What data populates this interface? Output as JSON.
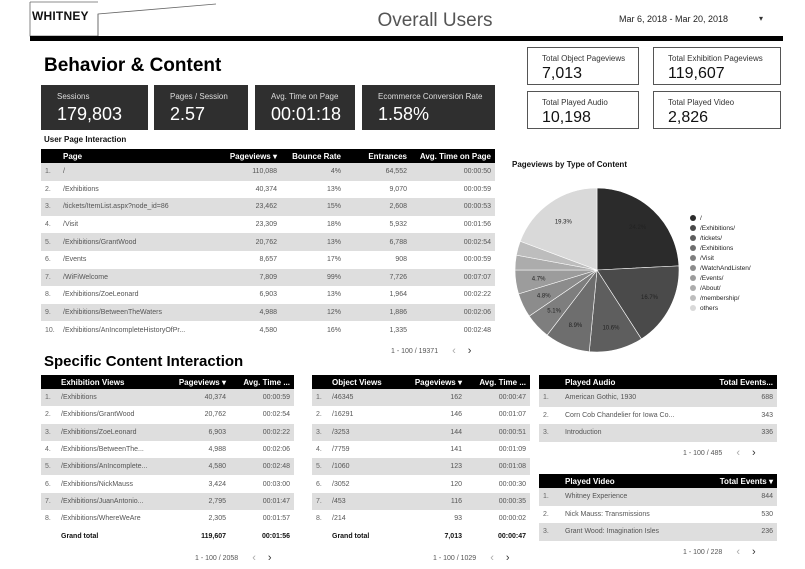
{
  "header": {
    "logo_text": "WHITNEY",
    "title": "Overall Users",
    "date_range": "Mar 6, 2018 - Mar 20, 2018",
    "dropdown_icon": "caret-down-icon"
  },
  "behavior": {
    "heading": "Behavior & Content",
    "kpis": [
      {
        "label": "Sessions",
        "value": "179,803"
      },
      {
        "label": "Pages / Session",
        "value": "2.57"
      },
      {
        "label": "Avg. Time on Page",
        "value": "00:01:18"
      },
      {
        "label": "Ecommerce Conversion Rate",
        "value": "1.58%"
      }
    ]
  },
  "totals": [
    {
      "label": "Total Object Pageviews",
      "value": "7,013"
    },
    {
      "label": "Total Exhibition Pageviews",
      "value": "119,607"
    },
    {
      "label": "Total Played Audio",
      "value": "10,198"
    },
    {
      "label": "Total Played Video",
      "value": "2,826"
    }
  ],
  "page_interaction": {
    "heading": "User Page Interaction",
    "columns": [
      "Page",
      "Pageviews",
      "Bounce Rate",
      "Entrances",
      "Avg. Time on Page"
    ],
    "sort_icon": "sort-desc-icon",
    "rows": [
      [
        "1.",
        "/",
        "110,088",
        "4%",
        "64,552",
        "00:00:50"
      ],
      [
        "2.",
        "/Exhibitions",
        "40,374",
        "13%",
        "9,070",
        "00:00:59"
      ],
      [
        "3.",
        "/tickets/ItemList.aspx?node_id=86",
        "23,462",
        "15%",
        "2,608",
        "00:00:53"
      ],
      [
        "4.",
        "/Visit",
        "23,309",
        "18%",
        "5,932",
        "00:01:56"
      ],
      [
        "5.",
        "/Exhibitions/GrantWood",
        "20,762",
        "13%",
        "6,788",
        "00:02:54"
      ],
      [
        "6.",
        "/Events",
        "8,657",
        "17%",
        "908",
        "00:00:59"
      ],
      [
        "7.",
        "/WiFiWelcome",
        "7,809",
        "99%",
        "7,726",
        "00:07:07"
      ],
      [
        "8.",
        "/Exhibitions/ZoeLeonard",
        "6,903",
        "13%",
        "1,964",
        "00:02:22"
      ],
      [
        "9.",
        "/Exhibitions/BetweenTheWaters",
        "4,988",
        "12%",
        "1,886",
        "00:02:06"
      ],
      [
        "10.",
        "/Exhibitions/AnIncompleteHistoryOfPr...",
        "4,580",
        "16%",
        "1,335",
        "00:02:48"
      ]
    ],
    "pager": "1 - 100 / 19371"
  },
  "pie": {
    "title": "Pageviews by Type of Content",
    "legend": [
      "/",
      "/Exhibitions/",
      "/tickets/",
      "/Exhibitions",
      "/Visit",
      "/WatchAndListen/",
      "/Events/",
      "/About/",
      "/membership/",
      "others"
    ],
    "colors": [
      "#2b2b2b",
      "#4a4a4a",
      "#5e5e5e",
      "#6e6e6e",
      "#7e7e7e",
      "#8c8c8c",
      "#9c9c9c",
      "#acacac",
      "#bdbdbd",
      "#d9d9d9"
    ],
    "slice_labels": [
      "24.2%",
      "16.7%",
      "10.6%",
      "8.9%",
      "5.1%",
      "4.8%",
      "4.7%",
      "19.3%"
    ]
  },
  "chart_data": {
    "type": "pie",
    "title": "Pageviews by Type of Content",
    "categories": [
      "/",
      "/Exhibitions/",
      "/tickets/",
      "/Exhibitions",
      "/Visit",
      "/WatchAndListen/",
      "/Events/",
      "/About/",
      "/membership/",
      "others"
    ],
    "values": [
      24.2,
      16.7,
      10.6,
      8.9,
      5.1,
      4.8,
      4.7,
      2.9,
      2.8,
      19.3
    ],
    "legend": "right"
  },
  "specific": {
    "heading": "Specific Content Interaction",
    "exhibitions": {
      "columns": [
        "Exhibition Views",
        "Pageviews",
        "Avg. Time ..."
      ],
      "rows": [
        [
          "1.",
          "/Exhibitions",
          "40,374",
          "00:00:59"
        ],
        [
          "2.",
          "/Exhibitions/GrantWood",
          "20,762",
          "00:02:54"
        ],
        [
          "3.",
          "/Exhibitions/ZoeLeonard",
          "6,903",
          "00:02:22"
        ],
        [
          "4.",
          "/Exhibitions/BetweenThe...",
          "4,988",
          "00:02:06"
        ],
        [
          "5.",
          "/Exhibitions/AnIncomplete...",
          "4,580",
          "00:02:48"
        ],
        [
          "6.",
          "/Exhibitions/NickMauss",
          "3,424",
          "00:03:00"
        ],
        [
          "7.",
          "/Exhibitions/JuanAntonio...",
          "2,795",
          "00:01:47"
        ],
        [
          "8.",
          "/Exhibitions/WhereWeAre",
          "2,305",
          "00:01:57"
        ]
      ],
      "total": [
        "Grand total",
        "119,607",
        "00:01:56"
      ],
      "pager": "1 - 100 / 2058"
    },
    "objects": {
      "columns": [
        "Object Views",
        "Pageviews",
        "Avg. Time ..."
      ],
      "rows": [
        [
          "1.",
          "/46345",
          "162",
          "00:00:47"
        ],
        [
          "2.",
          "/16291",
          "146",
          "00:01:07"
        ],
        [
          "3.",
          "/3253",
          "144",
          "00:00:51"
        ],
        [
          "4.",
          "/7759",
          "141",
          "00:01:09"
        ],
        [
          "5.",
          "/1060",
          "123",
          "00:01:08"
        ],
        [
          "6.",
          "/3052",
          "120",
          "00:00:30"
        ],
        [
          "7.",
          "/453",
          "116",
          "00:00:35"
        ],
        [
          "8.",
          "/214",
          "93",
          "00:00:02"
        ]
      ],
      "total": [
        "Grand total",
        "7,013",
        "00:00:47"
      ],
      "pager": "1 - 100 / 1029"
    },
    "audio": {
      "columns": [
        "Played Audio",
        "Total Events..."
      ],
      "rows": [
        [
          "1.",
          "American Gothic, 1930",
          "688"
        ],
        [
          "2.",
          "Corn Cob Chandelier for Iowa Co...",
          "343"
        ],
        [
          "3.",
          "Introduction",
          "336"
        ]
      ],
      "pager": "1 - 100 / 485"
    },
    "video": {
      "columns": [
        "Played Video",
        "Total Events"
      ],
      "rows": [
        [
          "1.",
          "Whitney Experience",
          "844"
        ],
        [
          "2.",
          "Nick Mauss: Transmissions",
          "530"
        ],
        [
          "3.",
          "Grant Wood: Imagination Isles",
          "236"
        ]
      ],
      "pager": "1 - 100 / 228"
    }
  },
  "icons": {
    "prev": "chevron-left-icon",
    "next": "chevron-right-icon"
  }
}
